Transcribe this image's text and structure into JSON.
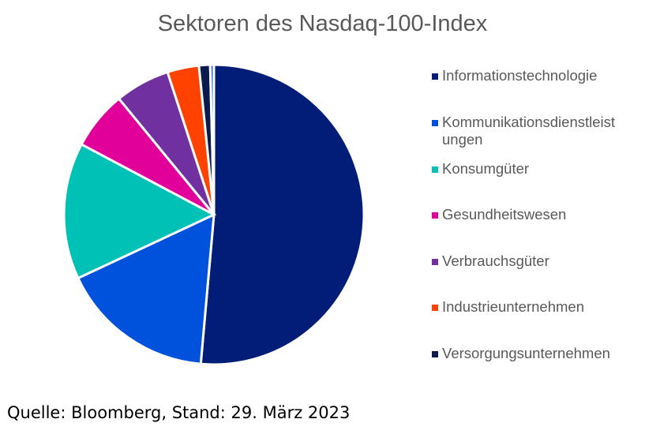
{
  "chart_data": {
    "type": "pie",
    "title": "Sektoren des Nasdaq-100-Index",
    "categories": [
      "Informationstechnologie",
      "Kommunikationsdienstleistungen",
      "Konsumgüter",
      "Gesundheitswesen",
      "Verbrauchsgüter",
      "Industrieunternehmen",
      "Versorgungsunternehmen",
      ""
    ],
    "legend_labels": [
      "Informationstechnologie",
      "Kommunikationsdienstleist ungen",
      "Konsumgüter",
      "Gesundheitswesen",
      "Verbrauchsgüter",
      "Industrieunternehmen",
      "Versorgungsunternehmen"
    ],
    "values": [
      51.3,
      16.6,
      14.7,
      6.3,
      5.9,
      3.4,
      1.2,
      0.4
    ],
    "colors": [
      "#021d78",
      "#0051db",
      "#00c1b5",
      "#e2009b",
      "#7030a0",
      "#ff4200",
      "#0b1a4c",
      "#2d6fd6"
    ],
    "legend_position": "right"
  },
  "source": "Quelle: Bloomberg, Stand: 29. März 2023"
}
